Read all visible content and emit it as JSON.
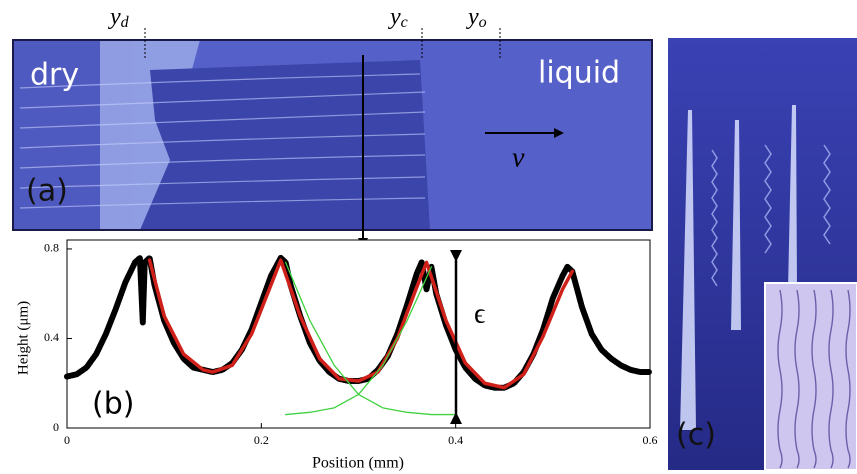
{
  "panel_a": {
    "label": "(a)",
    "dry": "dry",
    "liquid": "liquid",
    "velocity": "v",
    "markers": [
      {
        "symbol": "y",
        "subscript": "d"
      },
      {
        "symbol": "y",
        "subscript": "c"
      },
      {
        "symbol": "y",
        "subscript": "o"
      }
    ]
  },
  "chart_data": {
    "type": "line",
    "label": "(b)",
    "xlabel": "Position (mm)",
    "ylabel": "Height (μm)",
    "annotation": "ϵ",
    "xlim": [
      0,
      0.6
    ],
    "ylim": [
      0,
      0.84
    ],
    "xticks": [
      0,
      0.2,
      0.4,
      0.6
    ],
    "yticks": [
      0,
      0.4,
      0.8
    ],
    "series": [
      {
        "color": "#000000",
        "x": [
          0,
          0.01,
          0.02,
          0.03,
          0.04,
          0.05,
          0.06,
          0.07,
          0.075,
          0.078,
          0.08,
          0.085,
          0.09,
          0.1,
          0.11,
          0.12,
          0.13,
          0.14,
          0.15,
          0.16,
          0.17,
          0.18,
          0.19,
          0.2,
          0.21,
          0.22,
          0.225,
          0.23,
          0.24,
          0.25,
          0.26,
          0.27,
          0.28,
          0.29,
          0.3,
          0.31,
          0.32,
          0.33,
          0.34,
          0.35,
          0.36,
          0.365,
          0.37,
          0.375,
          0.38,
          0.39,
          0.4,
          0.41,
          0.42,
          0.43,
          0.44,
          0.45,
          0.46,
          0.47,
          0.48,
          0.49,
          0.5,
          0.51,
          0.515,
          0.52,
          0.525,
          0.53,
          0.54,
          0.55,
          0.56,
          0.57,
          0.58,
          0.59,
          0.6
        ],
        "values": [
          0.23,
          0.24,
          0.27,
          0.33,
          0.42,
          0.53,
          0.65,
          0.74,
          0.76,
          0.47,
          0.74,
          0.76,
          0.64,
          0.48,
          0.38,
          0.31,
          0.27,
          0.26,
          0.25,
          0.26,
          0.29,
          0.35,
          0.44,
          0.56,
          0.68,
          0.76,
          0.74,
          0.64,
          0.5,
          0.38,
          0.3,
          0.25,
          0.22,
          0.21,
          0.21,
          0.22,
          0.26,
          0.32,
          0.42,
          0.55,
          0.69,
          0.74,
          0.62,
          0.72,
          0.6,
          0.46,
          0.35,
          0.27,
          0.22,
          0.19,
          0.18,
          0.18,
          0.2,
          0.25,
          0.33,
          0.44,
          0.58,
          0.68,
          0.72,
          0.7,
          0.62,
          0.54,
          0.42,
          0.35,
          0.31,
          0.28,
          0.26,
          0.25,
          0.25
        ]
      },
      {
        "color": "#d0201a",
        "x": [
          0.085,
          0.1,
          0.12,
          0.14,
          0.15,
          0.17,
          0.19,
          0.21,
          0.22,
          0.24,
          0.26,
          0.28,
          0.3,
          0.32,
          0.34,
          0.36,
          0.37,
          0.39,
          0.41,
          0.43,
          0.45,
          0.47,
          0.49,
          0.51,
          0.52
        ],
        "values": [
          0.75,
          0.5,
          0.33,
          0.26,
          0.25,
          0.28,
          0.42,
          0.64,
          0.75,
          0.5,
          0.31,
          0.22,
          0.21,
          0.25,
          0.4,
          0.63,
          0.74,
          0.48,
          0.29,
          0.2,
          0.18,
          0.24,
          0.41,
          0.62,
          0.7
        ]
      },
      {
        "color": "#3fd23f",
        "x": [
          0.225,
          0.25,
          0.275,
          0.3,
          0.325,
          0.35,
          0.375,
          0.4
        ],
        "values": [
          0.74,
          0.48,
          0.28,
          0.15,
          0.09,
          0.07,
          0.06,
          0.06
        ]
      },
      {
        "color": "#3fd23f",
        "x": [
          0.225,
          0.25,
          0.275,
          0.3,
          0.325,
          0.35,
          0.375
        ],
        "values": [
          0.06,
          0.07,
          0.09,
          0.15,
          0.28,
          0.48,
          0.72
        ]
      }
    ]
  },
  "panel_c": {
    "label": "(c)"
  }
}
